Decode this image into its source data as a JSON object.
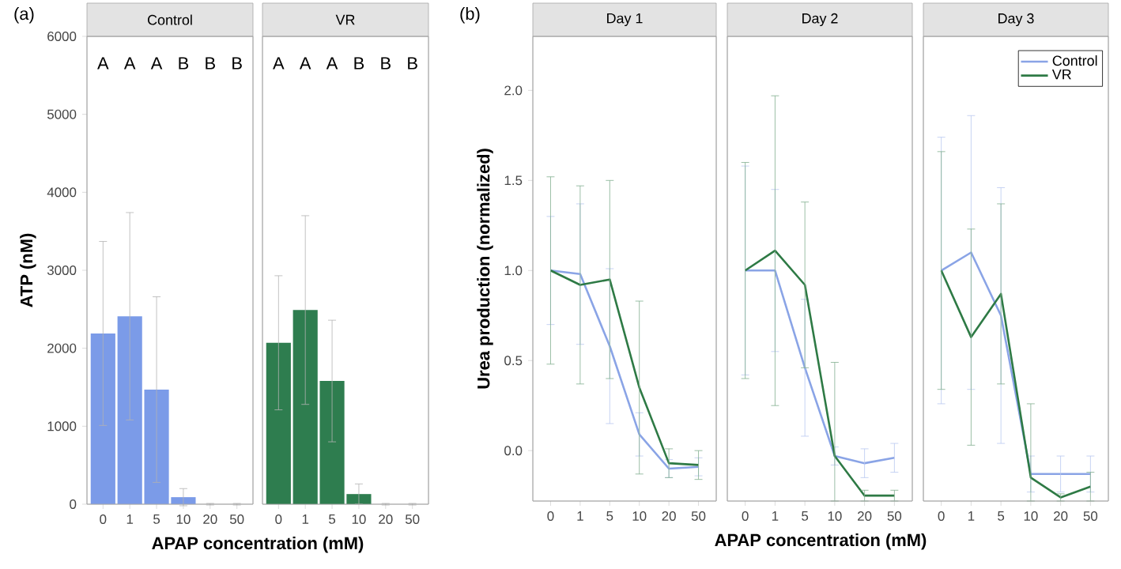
{
  "chart_data": [
    {
      "type": "bar",
      "title": "Control",
      "xlabel": "APAP concentration (mM)",
      "ylabel": "ATP (nM)",
      "categories": [
        "0",
        "1",
        "5",
        "10",
        "20",
        "50"
      ],
      "values": [
        2190,
        2410,
        1470,
        90,
        0,
        0
      ],
      "errors": [
        1180,
        1330,
        1190,
        110,
        10,
        10
      ],
      "color": "#7b9be8",
      "ylim": [
        0,
        6000
      ],
      "yticks": [
        0,
        1000,
        2000,
        3000,
        4000,
        5000,
        6000
      ],
      "tick_labels": true,
      "annotations": [
        "(a)",
        "A",
        "A",
        "A",
        "B",
        "B",
        "B"
      ]
    },
    {
      "type": "bar",
      "title": "VR",
      "categories": [
        "0",
        "1",
        "5",
        "10",
        "20",
        "50"
      ],
      "values": [
        2070,
        2490,
        1580,
        130,
        0,
        0
      ],
      "errors": [
        860,
        1210,
        780,
        130,
        10,
        10
      ],
      "color": "#2e7d4f",
      "ylim": [
        0,
        6000
      ],
      "tick_labels": "x",
      "annotations": [
        "A",
        "A",
        "A",
        "B",
        "B",
        "B"
      ]
    },
    {
      "type": "line",
      "title": "Day 1",
      "xlabel": "APAP concentration (mM)",
      "ylabel": "Urea production (normalized)",
      "categories": [
        "0",
        "1",
        "5",
        "10",
        "20",
        "50"
      ],
      "ylim": [
        -0.28,
        2.3
      ],
      "yticks": [
        {
          "value": 0,
          "label": "0.0"
        },
        {
          "value": 0.5,
          "label": "0.5"
        },
        {
          "value": 1,
          "label": "1.0"
        },
        {
          "value": 1.5,
          "label": "1.5"
        },
        {
          "value": 2,
          "label": "2.0"
        }
      ],
      "tick_labels": true,
      "annotations": [
        "(b)"
      ],
      "series": [
        {
          "color": "#8aa4e6",
          "values": [
            1.0,
            0.98,
            0.58,
            0.09,
            -0.1,
            -0.09
          ],
          "errors": [
            0.3,
            0.39,
            0.43,
            0.12,
            0.05,
            0.05
          ]
        },
        {
          "color": "#2e7a45",
          "values": [
            1.0,
            0.92,
            0.95,
            0.35,
            -0.07,
            -0.08
          ],
          "errors": [
            0.52,
            0.55,
            0.55,
            0.48,
            0.08,
            0.08
          ]
        }
      ]
    },
    {
      "type": "line",
      "title": "Day 2",
      "categories": [
        "0",
        "1",
        "5",
        "10",
        "20",
        "50"
      ],
      "ylim": [
        -0.28,
        2.3
      ],
      "tick_labels": "x",
      "series": [
        {
          "color": "#8aa4e6",
          "values": [
            1.0,
            1.0,
            0.46,
            -0.03,
            -0.07,
            -0.04
          ],
          "errors": [
            0.58,
            0.45,
            0.38,
            0.05,
            0.08,
            0.08
          ]
        },
        {
          "color": "#2e7a45",
          "values": [
            1.0,
            1.11,
            0.92,
            -0.03,
            -0.25,
            -0.25
          ],
          "errors": [
            0.6,
            0.86,
            0.46,
            [
              -0.28,
              0.49
            ],
            0.03,
            0.03
          ]
        }
      ]
    },
    {
      "type": "line",
      "title": "Day 3",
      "categories": [
        "0",
        "1",
        "5",
        "10",
        "20",
        "50"
      ],
      "ylim": [
        -0.28,
        2.3
      ],
      "tick_labels": "x",
      "legend": "top right",
      "series": [
        {
          "name": "Control",
          "color": "#8aa4e6",
          "values": [
            1.0,
            1.1,
            0.75,
            -0.13,
            -0.13,
            -0.13
          ],
          "errors": [
            0.74,
            0.76,
            0.71,
            0.1,
            0.1,
            0.1
          ]
        },
        {
          "name": "VR",
          "color": "#2e7a45",
          "values": [
            1.0,
            0.63,
            0.87,
            -0.15,
            -0.26,
            -0.2
          ],
          "errors": [
            0.66,
            0.6,
            0.5,
            [
              -0.28,
              0.26
            ],
            0.02,
            0.08
          ]
        }
      ]
    }
  ]
}
